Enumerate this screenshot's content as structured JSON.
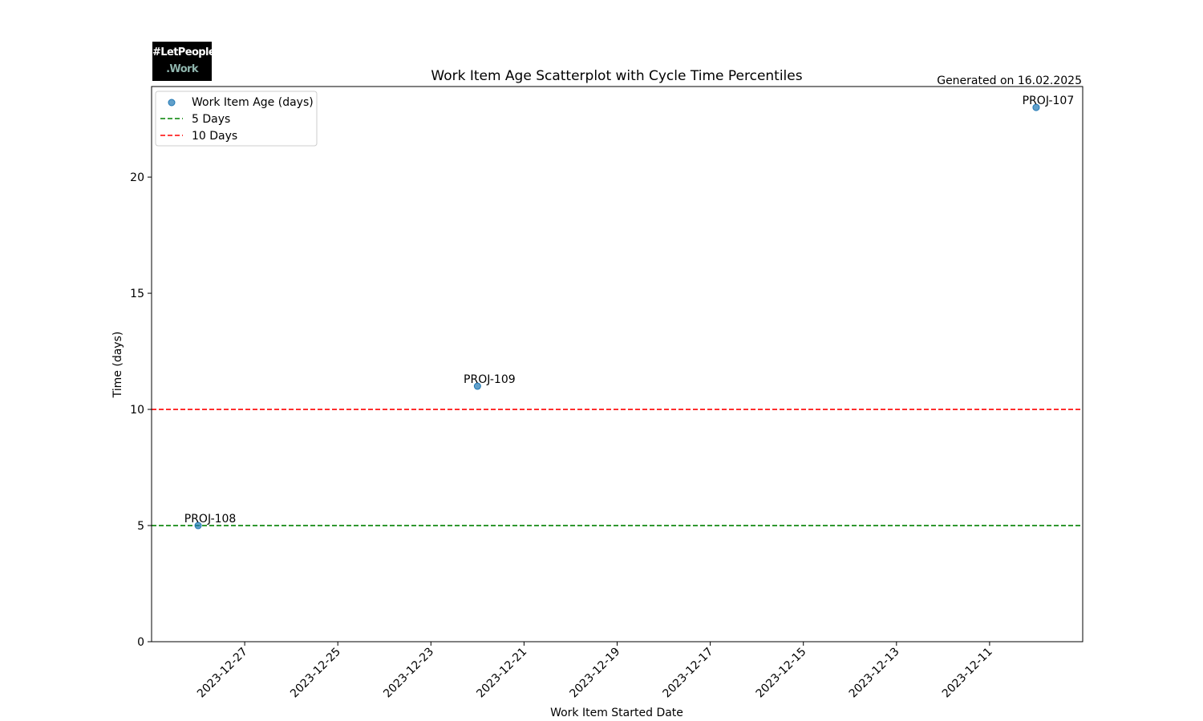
{
  "logo": {
    "line1": "#LetPeople",
    "line2": ".Work"
  },
  "chart_data": {
    "type": "scatter",
    "title": "Work Item Age Scatterplot with Cycle Time Percentiles",
    "subtitle": "Generated on 16.02.2025",
    "xlabel": "Work Item Started Date",
    "ylabel": "Time (days)",
    "x_axis": "date",
    "x_inverted": true,
    "xlim": [
      "2023-12-29",
      "2023-12-09"
    ],
    "ylim": [
      0,
      23.9
    ],
    "x_ticks": [
      "2023-12-27",
      "2023-12-25",
      "2023-12-23",
      "2023-12-21",
      "2023-12-19",
      "2023-12-17",
      "2023-12-15",
      "2023-12-13",
      "2023-12-11"
    ],
    "y_ticks": [
      0,
      5,
      10,
      15,
      20
    ],
    "grid": false,
    "legend_position": "top-left",
    "series": [
      {
        "name": "Work Item Age (days)",
        "color": "#1f77b4",
        "points": [
          {
            "x": "2023-12-28",
            "y": 5,
            "label": "PROJ-108"
          },
          {
            "x": "2023-12-22",
            "y": 11,
            "label": "PROJ-109"
          },
          {
            "x": "2023-12-10",
            "y": 23,
            "label": "PROJ-107"
          }
        ]
      }
    ],
    "reference_lines": [
      {
        "name": "5 Days",
        "y": 5,
        "color": "#008000",
        "style": "dashed"
      },
      {
        "name": "10 Days",
        "y": 10,
        "color": "#ff0000",
        "style": "dashed"
      }
    ]
  }
}
